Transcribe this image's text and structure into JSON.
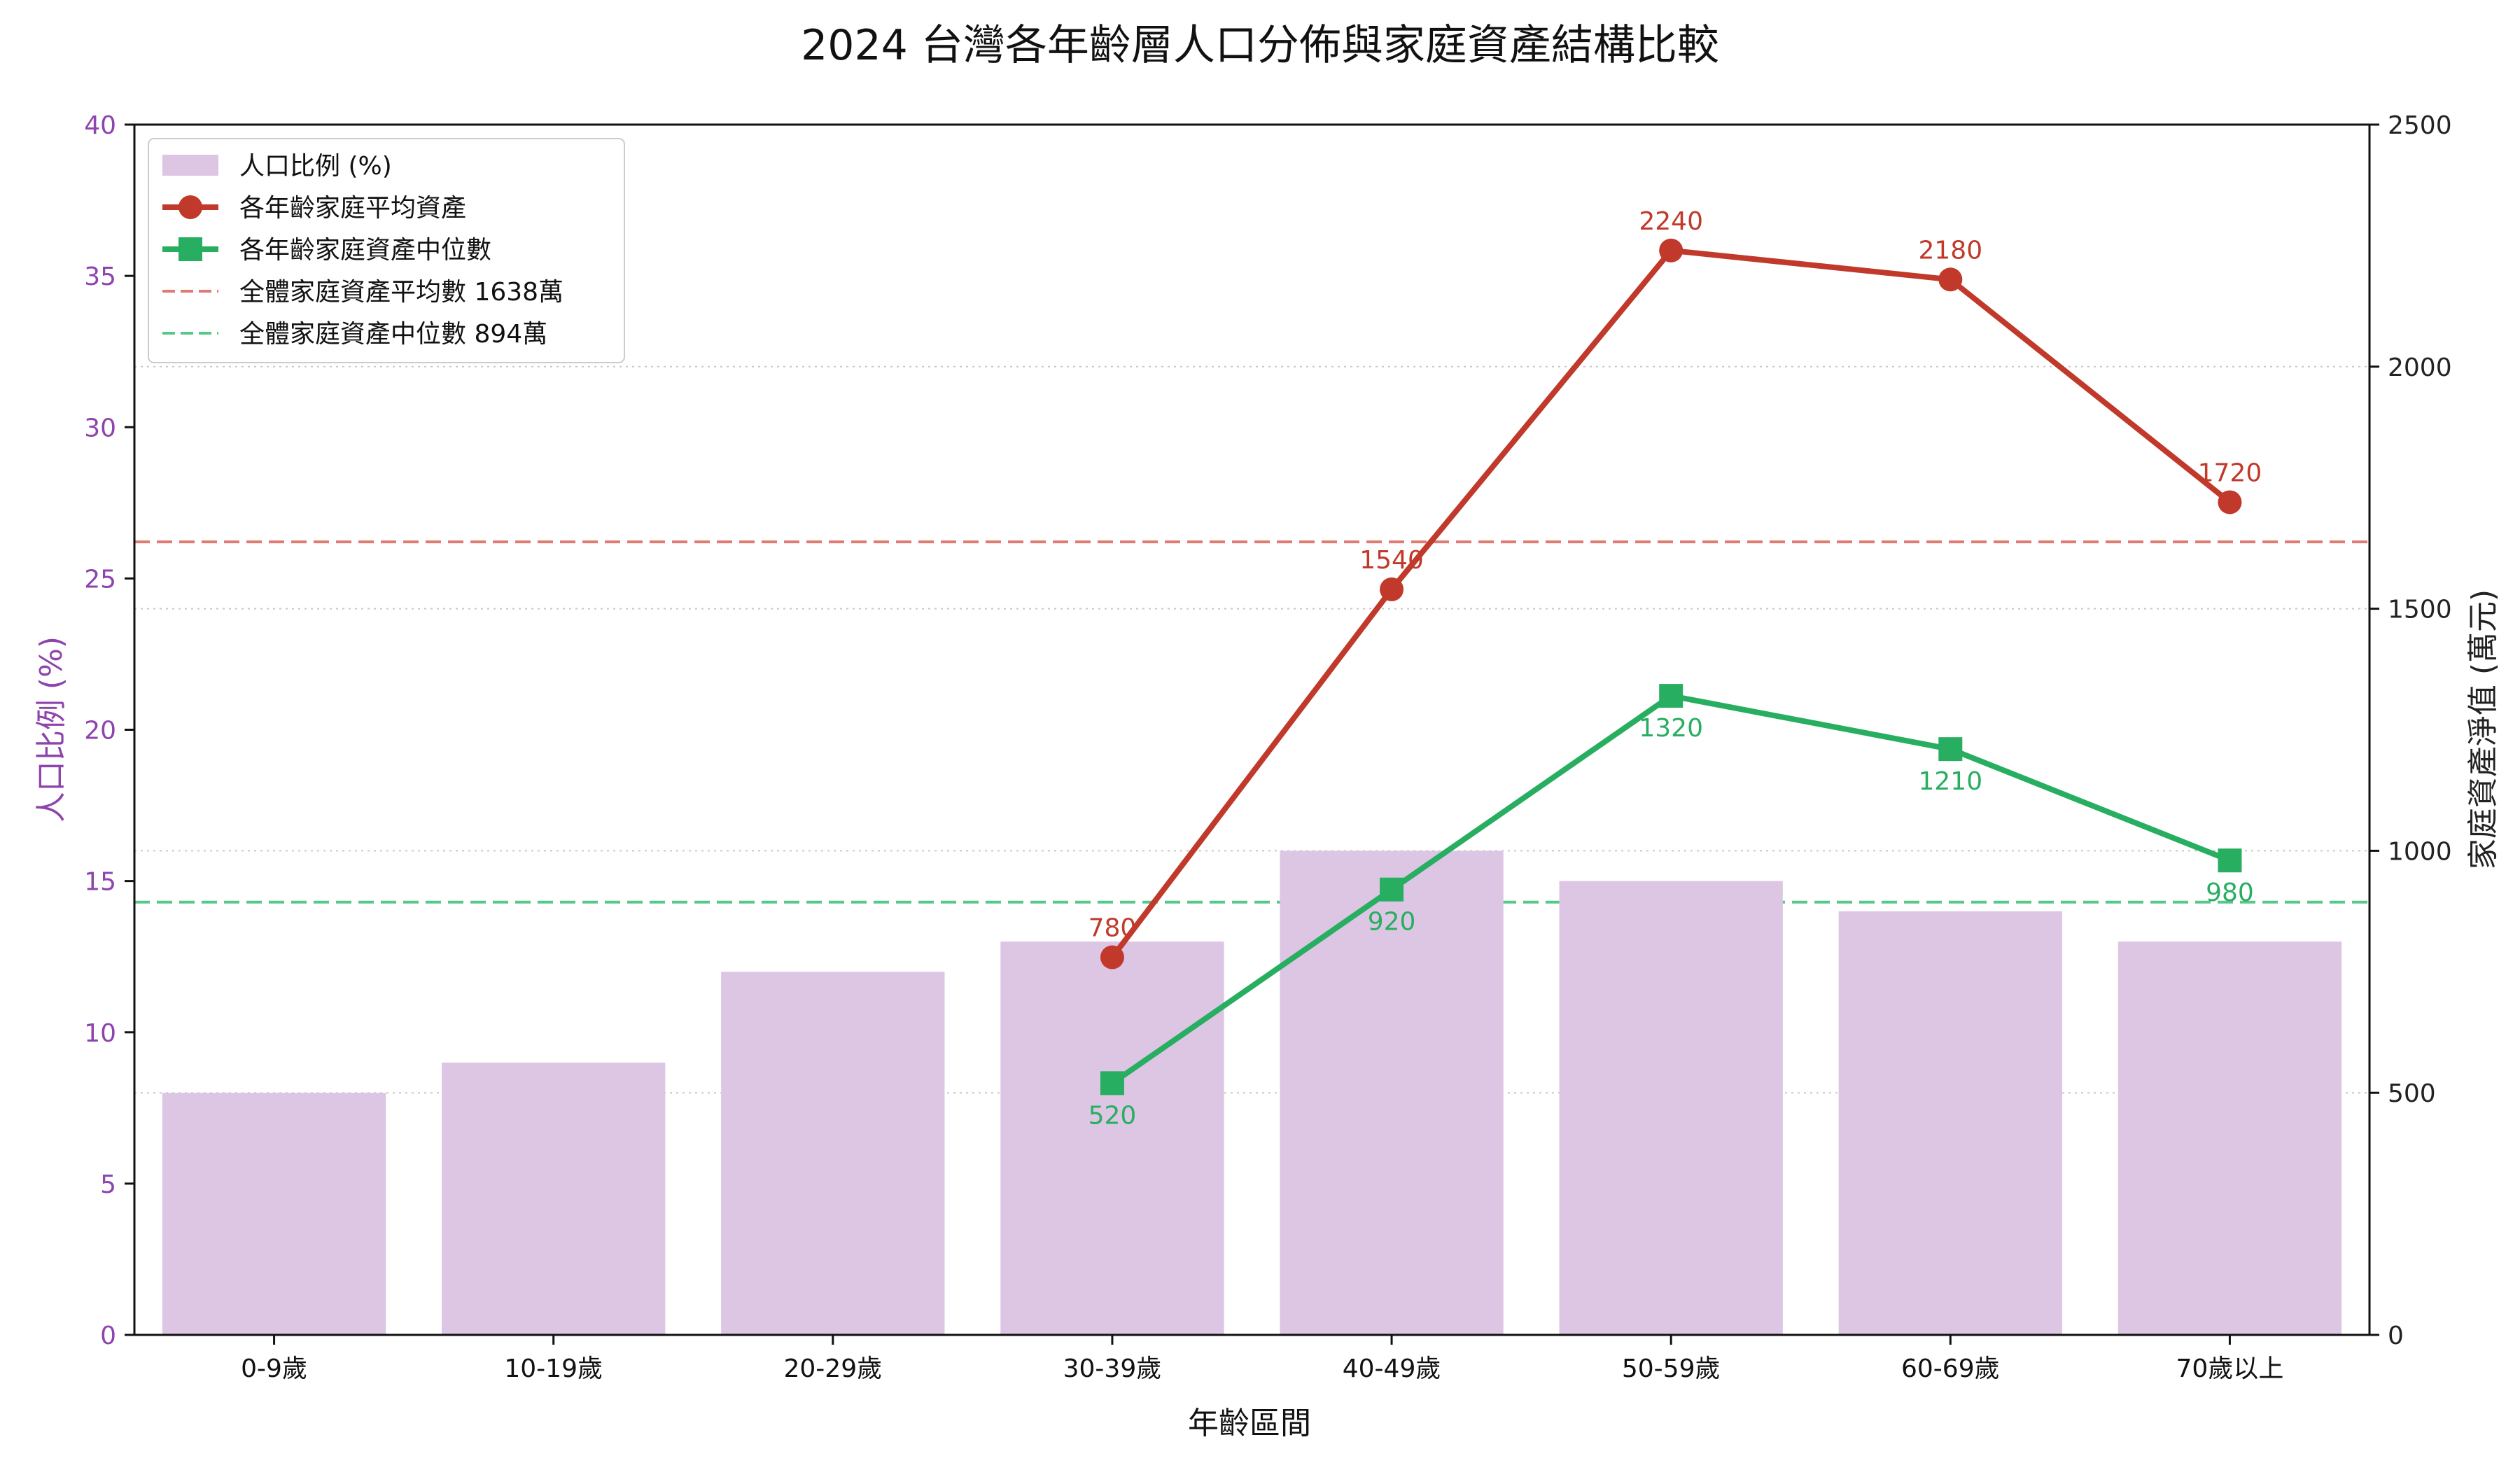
{
  "chart_data": {
    "type": "bar",
    "title": "2024 台灣各年齡層人口分佈與家庭資產結構比較",
    "xlabel": "年齡區間",
    "ylabel_left": "人口比例 (%)",
    "ylabel_right": "家庭資產淨值 (萬元)",
    "categories": [
      "0-9歲",
      "10-19歲",
      "20-29歲",
      "30-39歲",
      "40-49歲",
      "50-59歲",
      "60-69歲",
      "70歲以上"
    ],
    "ylim_left": [
      0,
      40
    ],
    "ylim_right": [
      0,
      2500
    ],
    "yticks_left": [
      "0",
      "5",
      "10",
      "15",
      "20",
      "25",
      "30",
      "35",
      "40"
    ],
    "yticks_right": [
      "0",
      "500",
      "1000",
      "1500",
      "2000",
      "2500"
    ],
    "grid": "horizontal dotted",
    "legend_position": "top-left",
    "series": [
      {
        "name": "人口比例 (%)",
        "type": "bar",
        "axis": "left",
        "color": "#dcc6e4",
        "values": [
          8,
          9,
          12,
          13,
          16,
          15,
          14,
          13
        ]
      },
      {
        "name": "各年齡家庭平均資產",
        "type": "line",
        "marker": "circle",
        "axis": "right",
        "color": "#c0392b",
        "values": [
          null,
          null,
          null,
          780,
          1540,
          2240,
          2180,
          1720
        ],
        "labels": [
          "",
          "",
          "",
          "780",
          "1540",
          "2240",
          "2180",
          "1720"
        ]
      },
      {
        "name": "各年齡家庭資產中位數",
        "type": "line",
        "marker": "square",
        "axis": "right",
        "color": "#27ae60",
        "values": [
          null,
          null,
          null,
          520,
          920,
          1320,
          1210,
          980
        ],
        "labels": [
          "",
          "",
          "",
          "520",
          "920",
          "1320",
          "1210",
          "980"
        ]
      }
    ],
    "reference_lines": [
      {
        "name": "全體家庭資產平均數 1638萬",
        "value": 1638,
        "axis": "right",
        "color": "#e07b73",
        "style": "dashed"
      },
      {
        "name": "全體家庭資產中位數 894萬",
        "value": 894,
        "axis": "right",
        "color": "#58c88a",
        "style": "dashed"
      }
    ],
    "colors": {
      "left_axis": "#8e44ad",
      "axis_text": "#222222",
      "grid": "#c8c8c8"
    }
  }
}
